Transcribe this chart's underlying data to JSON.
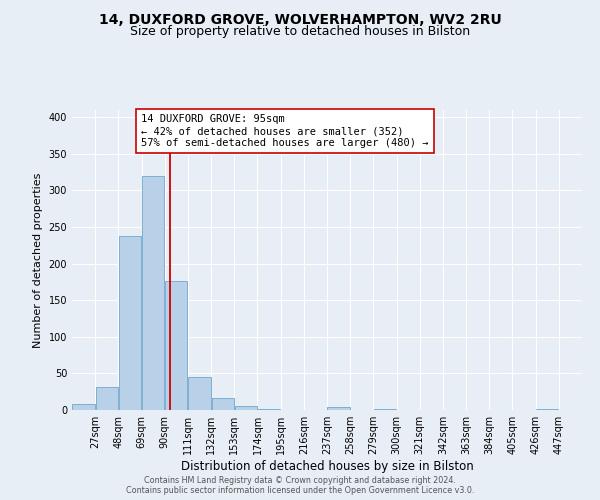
{
  "title": "14, DUXFORD GROVE, WOLVERHAMPTON, WV2 2RU",
  "subtitle": "Size of property relative to detached houses in Bilston",
  "xlabel": "Distribution of detached houses by size in Bilston",
  "ylabel": "Number of detached properties",
  "bar_left_edges": [
    6,
    27,
    48,
    69,
    90,
    111,
    132,
    153,
    174,
    195,
    216,
    237,
    258,
    279,
    300,
    321,
    342,
    363,
    384,
    405,
    426
  ],
  "bar_heights": [
    8,
    32,
    238,
    320,
    176,
    45,
    17,
    5,
    1,
    0,
    0,
    4,
    0,
    1,
    0,
    0,
    0,
    0,
    0,
    0,
    2
  ],
  "bin_width": 21,
  "bar_color": "#b8d0e8",
  "bar_edge_color": "#6fa8cc",
  "vline_x": 95,
  "vline_color": "#cc0000",
  "annotation_text": "14 DUXFORD GROVE: 95sqm\n← 42% of detached houses are smaller (352)\n57% of semi-detached houses are larger (480) →",
  "annotation_box_color": "#ffffff",
  "annotation_box_edge": "#cc0000",
  "xlim": [
    6,
    468
  ],
  "ylim": [
    0,
    410
  ],
  "yticks": [
    0,
    50,
    100,
    150,
    200,
    250,
    300,
    350,
    400
  ],
  "xtick_labels": [
    "27sqm",
    "48sqm",
    "69sqm",
    "90sqm",
    "111sqm",
    "132sqm",
    "153sqm",
    "174sqm",
    "195sqm",
    "216sqm",
    "237sqm",
    "258sqm",
    "279sqm",
    "300sqm",
    "321sqm",
    "342sqm",
    "363sqm",
    "384sqm",
    "405sqm",
    "426sqm",
    "447sqm"
  ],
  "xtick_positions": [
    27,
    48,
    69,
    90,
    111,
    132,
    153,
    174,
    195,
    216,
    237,
    258,
    279,
    300,
    321,
    342,
    363,
    384,
    405,
    426,
    447
  ],
  "background_color": "#e8eef5",
  "plot_bg_color": "#e8eef5",
  "grid_color": "#ffffff",
  "footnote1": "Contains HM Land Registry data © Crown copyright and database right 2024.",
  "footnote2": "Contains public sector information licensed under the Open Government Licence v3.0.",
  "title_fontsize": 10,
  "subtitle_fontsize": 9,
  "xlabel_fontsize": 8.5,
  "ylabel_fontsize": 8,
  "tick_fontsize": 7,
  "annotation_fontsize": 7.5,
  "footnote_fontsize": 5.8
}
